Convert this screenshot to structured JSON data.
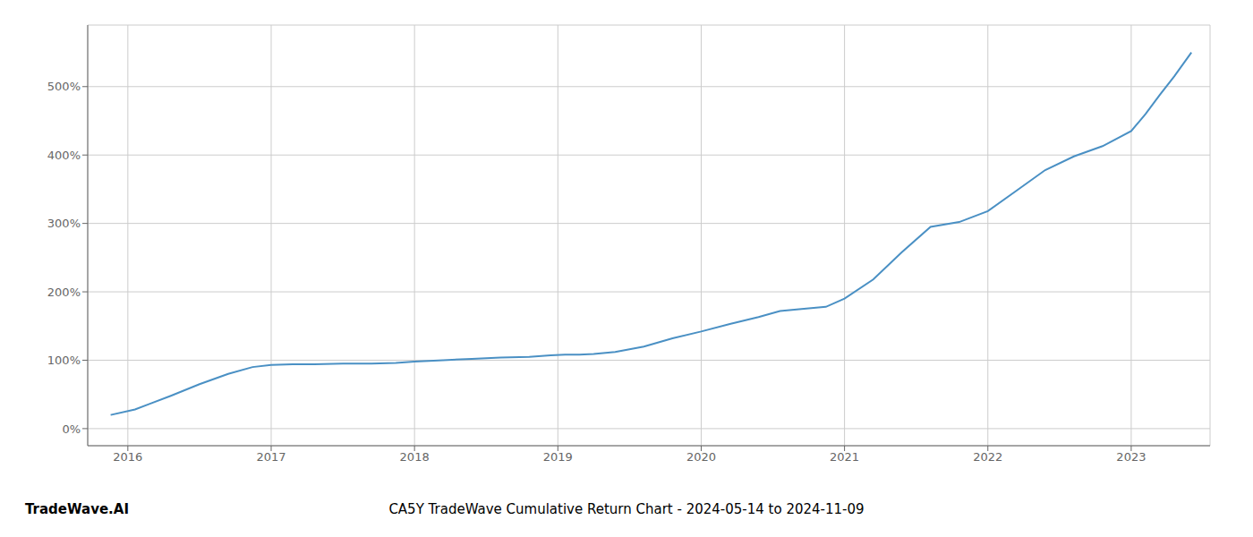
{
  "chart_data": {
    "type": "line",
    "title": "CA5Y TradeWave Cumulative Return Chart - 2024-05-14 to 2024-11-09",
    "annotations": [
      "TradeWave.AI"
    ],
    "x": [
      2015.88,
      2016.05,
      2016.15,
      2016.3,
      2016.5,
      2016.7,
      2016.87,
      2017.0,
      2017.15,
      2017.3,
      2017.5,
      2017.7,
      2017.87,
      2018.0,
      2018.2,
      2018.4,
      2018.6,
      2018.8,
      2018.95,
      2019.05,
      2019.15,
      2019.25,
      2019.4,
      2019.6,
      2019.8,
      2020.0,
      2020.2,
      2020.4,
      2020.55,
      2020.7,
      2020.87,
      2021.0,
      2021.2,
      2021.4,
      2021.6,
      2021.8,
      2022.0,
      2022.2,
      2022.4,
      2022.6,
      2022.8,
      2023.0,
      2023.1,
      2023.2,
      2023.3,
      2023.42
    ],
    "values": [
      20,
      28,
      36,
      48,
      65,
      80,
      90,
      93,
      94,
      94,
      95,
      95,
      96,
      98,
      100,
      102,
      104,
      105,
      107,
      108,
      108,
      109,
      112,
      120,
      132,
      142,
      153,
      163,
      172,
      175,
      178,
      190,
      218,
      258,
      295,
      302,
      318,
      348,
      378,
      398,
      413,
      435,
      460,
      488,
      515,
      550
    ],
    "color": "#4a90c4",
    "xlim": [
      2015.72,
      2023.55
    ],
    "xticks": [
      2016,
      2017,
      2018,
      2019,
      2020,
      2021,
      2022,
      2023
    ],
    "ylim": [
      -25,
      590
    ],
    "yticks": [
      {
        "value": 0,
        "label": "0%"
      },
      {
        "value": 100,
        "label": "100%"
      },
      {
        "value": 200,
        "label": "200%"
      },
      {
        "value": 300,
        "label": "300%"
      },
      {
        "value": 400,
        "label": "400%"
      },
      {
        "value": 500,
        "label": "500%"
      }
    ],
    "grid": true
  }
}
